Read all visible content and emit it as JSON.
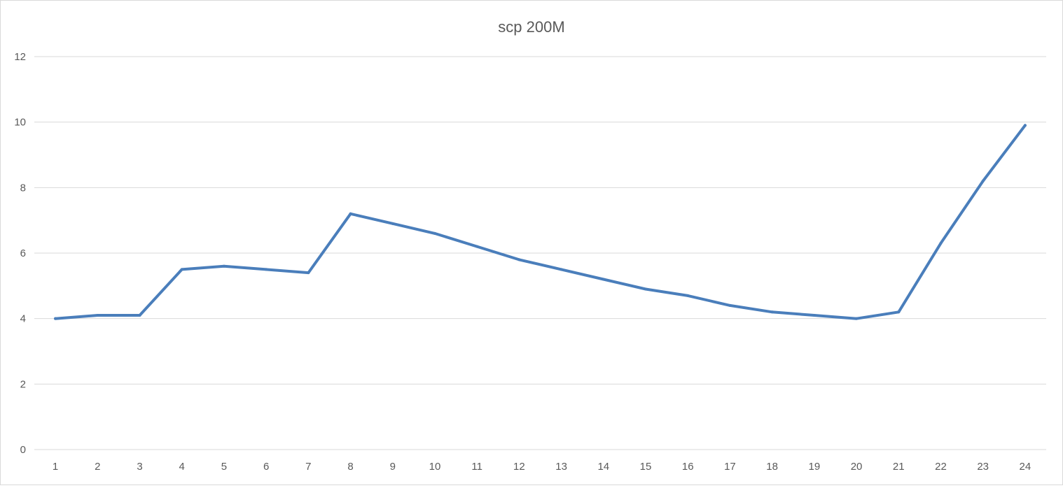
{
  "chart_data": {
    "type": "line",
    "title": "scp 200M",
    "xlabel": "",
    "ylabel": "",
    "x": [
      "1",
      "2",
      "3",
      "4",
      "5",
      "6",
      "7",
      "8",
      "9",
      "10",
      "11",
      "12",
      "13",
      "14",
      "15",
      "16",
      "17",
      "18",
      "19",
      "20",
      "21",
      "22",
      "23",
      "24"
    ],
    "series": [
      {
        "name": "",
        "values": [
          4.0,
          4.1,
          4.1,
          5.5,
          5.6,
          5.5,
          5.4,
          7.2,
          6.9,
          6.6,
          6.2,
          5.8,
          5.5,
          5.2,
          4.9,
          4.7,
          4.4,
          4.2,
          4.1,
          4.0,
          4.2,
          6.3,
          8.2,
          9.9
        ],
        "color": "#4a7ebb"
      }
    ],
    "ylim": [
      0,
      12
    ],
    "yticks": [
      "0",
      "2",
      "4",
      "6",
      "8",
      "10",
      "12"
    ],
    "grid": true,
    "legend": "none"
  }
}
